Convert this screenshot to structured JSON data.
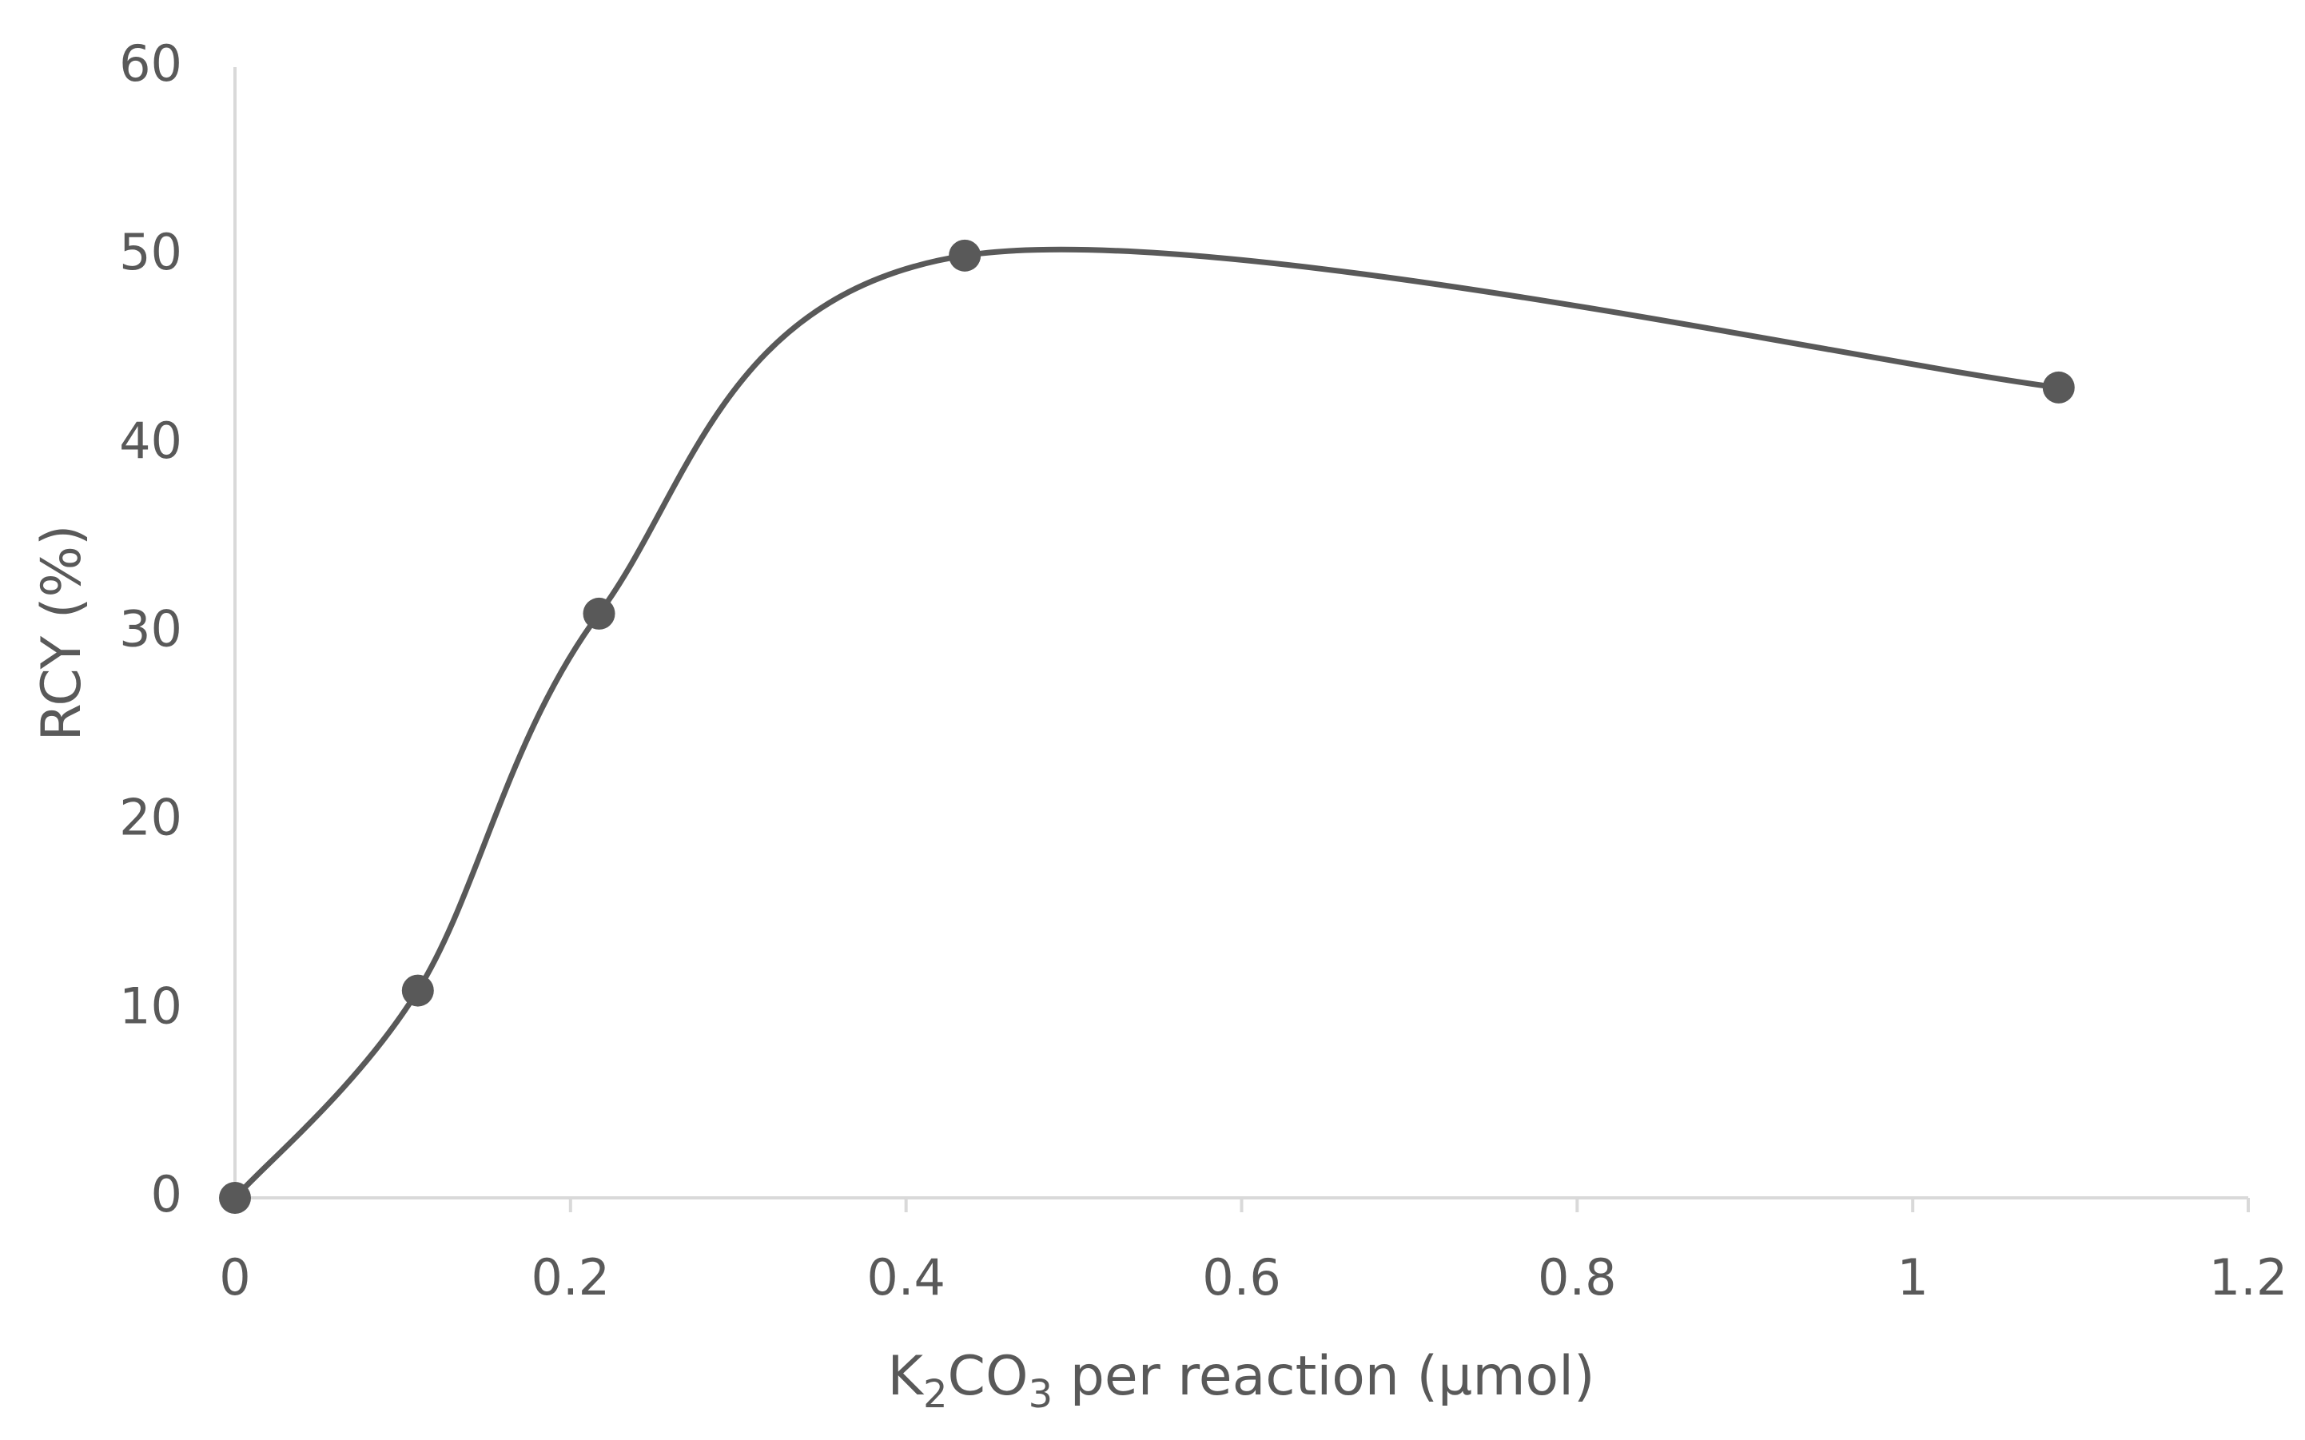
{
  "chart_data": {
    "type": "line",
    "smooth": true,
    "title": "",
    "xlabel": {
      "prefix": "K",
      "sub1": "2",
      "mid": "CO",
      "sub2": "3",
      "suffix": " per reaction (µmol)"
    },
    "ylabel": "RCY (%)",
    "xlim": [
      0,
      1.2
    ],
    "ylim": [
      0,
      60
    ],
    "x_ticks": [
      0,
      0.2,
      0.4,
      0.6,
      0.8,
      1,
      1.2
    ],
    "x_tick_labels": [
      "0",
      "0.2",
      "0.4",
      "0.6",
      "0.8",
      "1",
      "1.2"
    ],
    "y_ticks": [
      0,
      10,
      20,
      30,
      40,
      50,
      60
    ],
    "y_tick_labels": [
      "0",
      "10",
      "20",
      "30",
      "40",
      "50",
      "60"
    ],
    "grid": false,
    "series": [
      {
        "name": "RCY",
        "x": [
          0,
          0.109,
          0.217,
          0.435,
          1.087
        ],
        "y": [
          0,
          11,
          31,
          50,
          43
        ]
      }
    ],
    "colors": {
      "line": "#595959",
      "marker": "#595959",
      "axis": "#d9d9d9",
      "text": "#595959"
    }
  }
}
